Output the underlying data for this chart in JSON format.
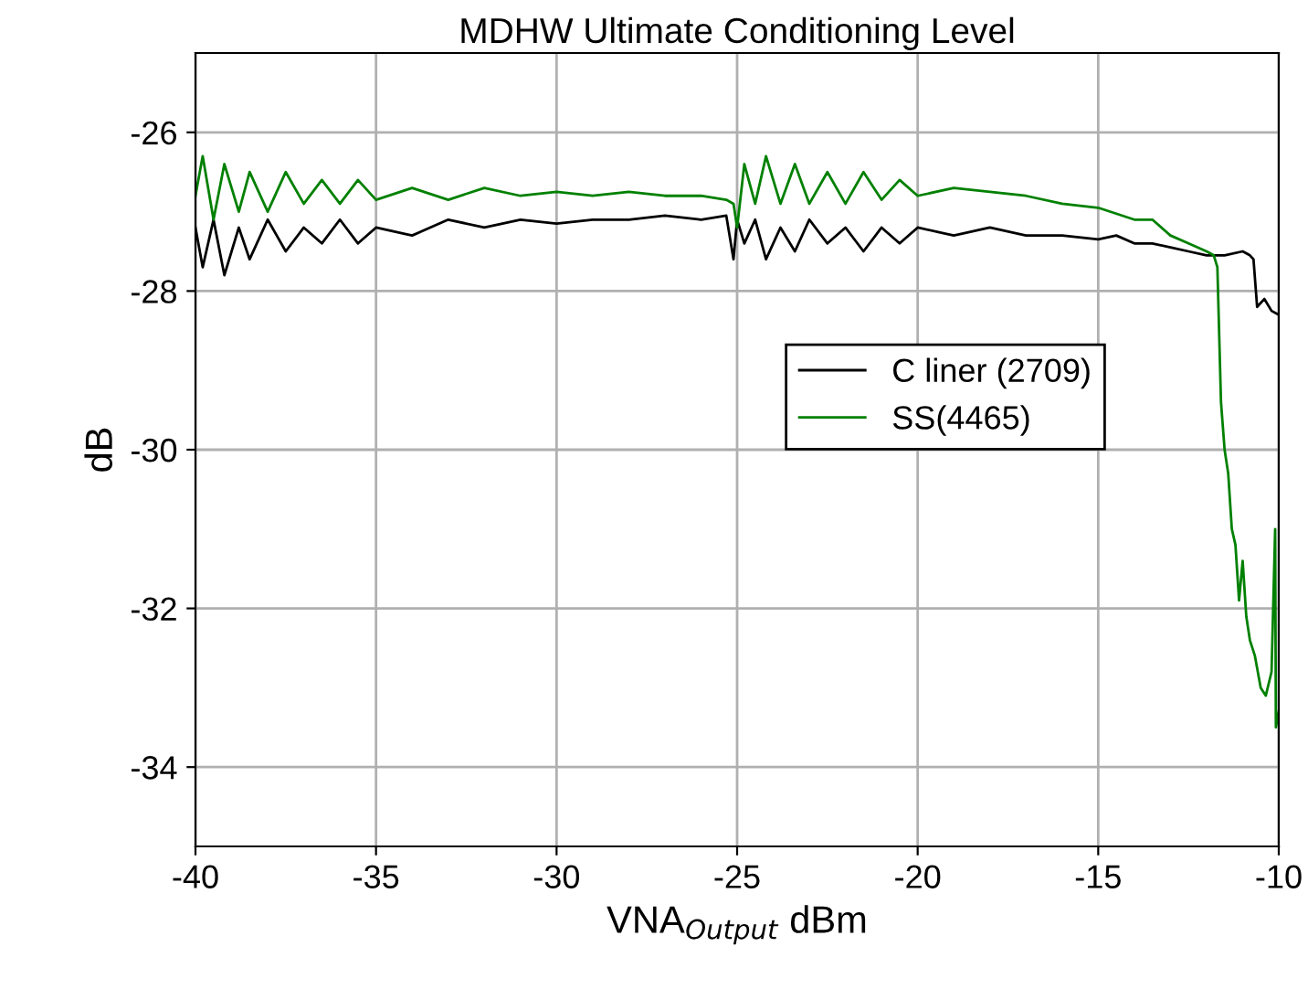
{
  "chart_data": {
    "type": "line",
    "title": "MDHW Ultimate Conditioning Level",
    "xlabel": "VNA$_{Output}$ dBm",
    "ylabel": "dB",
    "xlim": [
      -40,
      -10
    ],
    "xticks": [
      -40,
      -35,
      -30,
      -25,
      -20,
      -15,
      -10
    ],
    "ylim": [
      -35,
      -25
    ],
    "yticks": [
      -34,
      -32,
      -30,
      -28,
      -26
    ],
    "grid": true,
    "legend": "right",
    "marker": "none",
    "line_style": "solid",
    "series": [
      {
        "name": "C liner (2709)",
        "color": "#000000",
        "x": [
          -40,
          -39.8,
          -39.5,
          -39.2,
          -38.8,
          -38.5,
          -38,
          -37.5,
          -37,
          -36.5,
          -36,
          -35.5,
          -35,
          -34,
          -33,
          -32,
          -31,
          -30,
          -29,
          -28,
          -27,
          -26,
          -25.3,
          -25.1,
          -25,
          -24.8,
          -24.5,
          -24.2,
          -23.8,
          -23.4,
          -23,
          -22.5,
          -22,
          -21.5,
          -21,
          -20.5,
          -20,
          -19,
          -18,
          -17,
          -16,
          -15,
          -14.5,
          -14,
          -13.5,
          -13,
          -12.5,
          -12,
          -11.5,
          -11,
          -10.8,
          -10.7,
          -10.6,
          -10.4,
          -10.2,
          -10
        ],
        "values": [
          -27.2,
          -27.7,
          -27.1,
          -27.8,
          -27.2,
          -27.6,
          -27.1,
          -27.5,
          -27.2,
          -27.4,
          -27.1,
          -27.4,
          -27.2,
          -27.3,
          -27.1,
          -27.2,
          -27.1,
          -27.15,
          -27.1,
          -27.1,
          -27.05,
          -27.1,
          -27.05,
          -27.6,
          -27.1,
          -27.4,
          -27.1,
          -27.6,
          -27.2,
          -27.5,
          -27.1,
          -27.4,
          -27.2,
          -27.5,
          -27.2,
          -27.4,
          -27.2,
          -27.3,
          -27.2,
          -27.3,
          -27.3,
          -27.35,
          -27.3,
          -27.4,
          -27.4,
          -27.45,
          -27.5,
          -27.55,
          -27.55,
          -27.5,
          -27.55,
          -27.6,
          -28.2,
          -28.1,
          -28.25,
          -28.3
        ]
      },
      {
        "name": "SS(4465)",
        "color": "#008000",
        "x": [
          -40,
          -39.8,
          -39.5,
          -39.2,
          -38.8,
          -38.5,
          -38,
          -37.5,
          -37,
          -36.5,
          -36,
          -35.5,
          -35,
          -34,
          -33,
          -32,
          -31,
          -30,
          -29,
          -28,
          -27,
          -26,
          -25.3,
          -25.1,
          -25,
          -24.8,
          -24.5,
          -24.2,
          -23.8,
          -23.4,
          -23,
          -22.5,
          -22,
          -21.5,
          -21,
          -20.5,
          -20,
          -19,
          -18,
          -17,
          -16,
          -15,
          -14,
          -13.5,
          -13,
          -12.5,
          -12,
          -11.8,
          -11.7,
          -11.6,
          -11.5,
          -11.4,
          -11.3,
          -11.2,
          -11.1,
          -11,
          -10.9,
          -10.8,
          -10.66,
          -10.5,
          -10.36,
          -10.2,
          -10.1,
          -10.08,
          -10
        ],
        "values": [
          -26.8,
          -26.3,
          -27.1,
          -26.4,
          -27.0,
          -26.5,
          -27.0,
          -26.5,
          -26.9,
          -26.6,
          -26.9,
          -26.6,
          -26.85,
          -26.7,
          -26.85,
          -26.7,
          -26.8,
          -26.75,
          -26.8,
          -26.75,
          -26.8,
          -26.8,
          -26.85,
          -26.9,
          -27.2,
          -26.4,
          -26.9,
          -26.3,
          -26.9,
          -26.4,
          -26.9,
          -26.5,
          -26.9,
          -26.5,
          -26.85,
          -26.6,
          -26.8,
          -26.7,
          -26.75,
          -26.8,
          -26.9,
          -26.95,
          -27.1,
          -27.1,
          -27.3,
          -27.4,
          -27.5,
          -27.55,
          -27.7,
          -29.4,
          -30.0,
          -30.3,
          -31.0,
          -31.2,
          -31.9,
          -31.4,
          -32.1,
          -32.4,
          -32.6,
          -33.0,
          -33.1,
          -32.8,
          -31.0,
          -33.5,
          -33.3
        ]
      }
    ]
  }
}
